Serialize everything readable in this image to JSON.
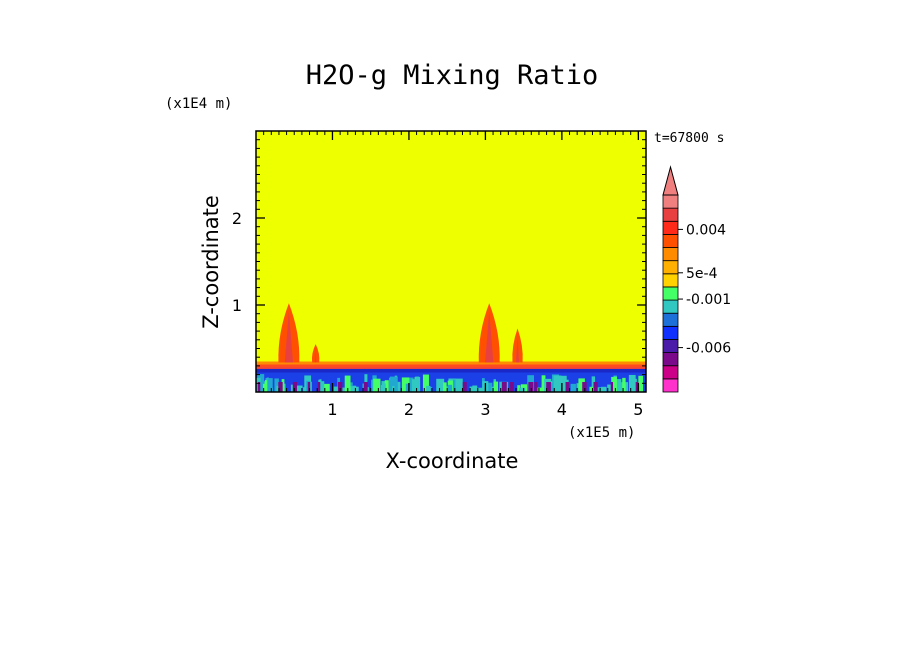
{
  "chart_data": {
    "type": "heatmap",
    "title": "H2O-g Mixing Ratio",
    "xlabel": "X-coordinate",
    "ylabel": "Z-coordinate",
    "x_unit": "(x1E5 m)",
    "y_unit": "(x1E4 m)",
    "time_label": "t=67800 s",
    "xlim": [
      0,
      5.1
    ],
    "ylim": [
      0,
      3
    ],
    "x_ticks": [
      1,
      2,
      3,
      4,
      5
    ],
    "y_ticks": [
      1,
      2
    ],
    "x_tick_labels": [
      "1",
      "2",
      "3",
      "4",
      "5"
    ],
    "y_tick_labels": [
      "1",
      "2"
    ],
    "background_level_color": "#eeff00",
    "surface_layer_top": 0.27,
    "plumes": [
      {
        "x": 0.43,
        "top": 1.02,
        "width": 0.22
      },
      {
        "x": 0.78,
        "top": 0.55,
        "width": 0.04
      },
      {
        "x": 3.05,
        "top": 1.02,
        "width": 0.22
      },
      {
        "x": 3.42,
        "top": 0.73,
        "width": 0.08
      }
    ],
    "colorbar": {
      "colors": [
        "#ff33cc",
        "#cc0088",
        "#7a0a8a",
        "#4a1aa8",
        "#1030ff",
        "#1c70d8",
        "#30c8c0",
        "#44ff66",
        "#ffd200",
        "#ffb000",
        "#ff8c00",
        "#ff5000",
        "#ff2a1a",
        "#e84040",
        "#f08080"
      ],
      "extend_color": "#f08080",
      "labels": [
        "0.004",
        "5e-4",
        "-0.001",
        "-0.006"
      ]
    }
  }
}
